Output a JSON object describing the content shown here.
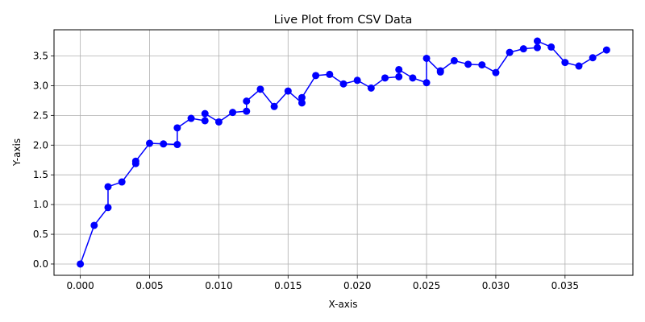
{
  "chart_data": {
    "type": "line",
    "title": "Live Plot from CSV Data",
    "xlabel": "X-axis",
    "ylabel": "Y-axis",
    "xlim": [
      -0.0019,
      0.0399
    ],
    "ylim": [
      -0.19,
      3.94
    ],
    "x_ticks": [
      0.0,
      0.005,
      0.01,
      0.015,
      0.02,
      0.025,
      0.03,
      0.035
    ],
    "x_tick_labels": [
      "0.000",
      "0.005",
      "0.010",
      "0.015",
      "0.020",
      "0.025",
      "0.030",
      "0.035"
    ],
    "y_ticks": [
      0.0,
      0.5,
      1.0,
      1.5,
      2.0,
      2.5,
      3.0,
      3.5
    ],
    "y_tick_labels": [
      "0.0",
      "0.5",
      "1.0",
      "1.5",
      "2.0",
      "2.5",
      "3.0",
      "3.5"
    ],
    "grid": true,
    "legend": "none",
    "color": "#0000ff",
    "marker": "circle",
    "series": [
      {
        "x": [
          0.0,
          0.001,
          0.002,
          0.002,
          0.003,
          0.004,
          0.004,
          0.005,
          0.006,
          0.007,
          0.007,
          0.008,
          0.009,
          0.009,
          0.01,
          0.011,
          0.012,
          0.012,
          0.013,
          0.014,
          0.015,
          0.016,
          0.016,
          0.017,
          0.018,
          0.019,
          0.02,
          0.021,
          0.022,
          0.023,
          0.023,
          0.024,
          0.025,
          0.025,
          0.026,
          0.026,
          0.027,
          0.028,
          0.029,
          0.03,
          0.031,
          0.032,
          0.033,
          0.033,
          0.034,
          0.035,
          0.036,
          0.037,
          0.038
        ],
        "y": [
          0.0,
          0.65,
          0.95,
          1.3,
          1.38,
          1.69,
          1.73,
          2.03,
          2.02,
          2.01,
          2.29,
          2.45,
          2.41,
          2.53,
          2.39,
          2.55,
          2.57,
          2.74,
          2.94,
          2.65,
          2.91,
          2.71,
          2.8,
          3.17,
          3.19,
          3.03,
          3.09,
          2.96,
          3.13,
          3.15,
          3.27,
          3.13,
          3.05,
          3.46,
          3.23,
          3.25,
          3.42,
          3.36,
          3.35,
          3.22,
          3.56,
          3.62,
          3.64,
          3.75,
          3.65,
          3.39,
          3.33,
          3.47,
          3.6
        ]
      }
    ]
  }
}
